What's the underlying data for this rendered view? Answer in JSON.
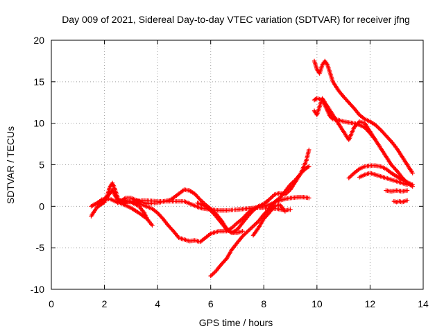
{
  "chart_data": {
    "type": "scatter",
    "title": "Day 009 of 2021, Sidereal Day-to-day VTEC variation (SDTVAR) for receiver jfng",
    "xlabel": "GPS time / hours",
    "ylabel": "SDTVAR / TECUs",
    "xlim": [
      0,
      14
    ],
    "ylim": [
      -10,
      20
    ],
    "xticks": [
      0,
      2,
      4,
      6,
      8,
      10,
      12,
      14
    ],
    "yticks": [
      -10,
      -5,
      0,
      5,
      10,
      15,
      20
    ],
    "xtick_labels": [
      "0",
      "2",
      "4",
      "6",
      "8",
      "10",
      "12",
      "14"
    ],
    "ytick_labels": [
      "-10",
      "-5",
      "0",
      "5",
      "10",
      "15",
      "20"
    ],
    "grid": true,
    "marker": "plus",
    "marker_color": "#ff0000",
    "series": [
      {
        "x": [
          1.5,
          1.7,
          1.9,
          2.0,
          2.1,
          2.2,
          2.3,
          2.4,
          2.5,
          2.6,
          2.8,
          3.0,
          3.3,
          3.6,
          3.8
        ],
        "y": [
          -1.2,
          -0.2,
          0.3,
          0.5,
          1.2,
          2.3,
          2.8,
          2.0,
          1.0,
          0.4,
          0.1,
          -0.2,
          -0.8,
          -1.5,
          -2.3
        ]
      },
      {
        "x": [
          1.5,
          1.7,
          1.9,
          2.0,
          2.1,
          2.2,
          2.3,
          2.4,
          2.5,
          2.7,
          3.0,
          3.3,
          3.5,
          3.6
        ],
        "y": [
          0.0,
          0.3,
          0.8,
          0.9,
          1.2,
          1.5,
          2.0,
          1.3,
          0.8,
          0.6,
          0.5,
          0.0,
          -0.8,
          -1.5
        ]
      },
      {
        "x": [
          1.6,
          1.8,
          2.0,
          2.2,
          2.4,
          2.6,
          3.0,
          3.5,
          4.0,
          4.5,
          5.0,
          5.3,
          5.6,
          6.0,
          6.3,
          6.6,
          7.0,
          7.3,
          7.6,
          8.0,
          8.5,
          8.8,
          9.0
        ],
        "y": [
          0.2,
          0.5,
          0.8,
          0.9,
          0.6,
          0.4,
          0.6,
          0.7,
          0.6,
          0.6,
          0.6,
          0.2,
          -0.2,
          -0.4,
          -0.5,
          -0.5,
          -0.4,
          -0.3,
          -0.2,
          -0.2,
          -0.3,
          -0.5,
          -0.4
        ]
      },
      {
        "x": [
          2.5,
          2.8,
          3.0,
          3.3,
          3.6,
          4.0,
          4.5,
          4.8,
          5.0,
          5.2,
          5.4,
          5.6,
          5.8,
          6.0,
          6.2,
          6.4,
          6.6,
          6.8,
          7.0,
          7.2
        ],
        "y": [
          0.4,
          1.0,
          1.0,
          0.6,
          0.3,
          0.4,
          0.8,
          1.5,
          2.0,
          1.9,
          1.5,
          0.8,
          0.2,
          -0.3,
          -0.9,
          -1.7,
          -2.7,
          -3.2,
          -3.2,
          -3.0
        ]
      },
      {
        "x": [
          2.6,
          3.0,
          3.4,
          3.8,
          4.0,
          4.2,
          4.4,
          4.6,
          4.8,
          5.0,
          5.2,
          5.4,
          5.6,
          5.8,
          6.0,
          6.3,
          6.6,
          6.8,
          7.0,
          7.2,
          7.4,
          7.6,
          7.8,
          8.0,
          8.3,
          8.5,
          8.7,
          9.0,
          9.3,
          9.5,
          9.7
        ],
        "y": [
          0.5,
          0.6,
          0.2,
          -0.3,
          -0.8,
          -1.5,
          -2.3,
          -3.0,
          -3.8,
          -4.0,
          -4.2,
          -4.1,
          -4.3,
          -3.8,
          -3.3,
          -3.0,
          -3.0,
          -2.6,
          -2.0,
          -1.5,
          -0.8,
          -0.3,
          0.0,
          0.0,
          0.3,
          0.6,
          0.8,
          1.0,
          1.1,
          1.1,
          1.0
        ]
      },
      {
        "x": [
          5.5,
          5.8,
          6.0,
          6.2,
          6.4,
          6.6,
          6.8,
          7.0,
          7.2,
          7.4,
          7.6,
          7.8,
          8.0,
          8.2,
          8.4,
          8.6,
          8.8,
          9.0,
          9.2,
          9.4,
          9.6,
          9.7
        ],
        "y": [
          0.4,
          0.0,
          -0.5,
          -1.2,
          -2.0,
          -2.8,
          -3.2,
          -2.8,
          -2.0,
          -1.2,
          -0.5,
          0.0,
          0.3,
          0.8,
          1.4,
          1.6,
          1.4,
          2.0,
          3.0,
          4.0,
          5.5,
          6.8
        ]
      },
      {
        "x": [
          6.0,
          6.2,
          6.4,
          6.6,
          6.8,
          7.0,
          7.2,
          7.4,
          7.6,
          7.8,
          8.0,
          8.2,
          8.4,
          8.6,
          8.8,
          9.0,
          9.2,
          9.4,
          9.6,
          9.7
        ],
        "y": [
          -8.4,
          -7.8,
          -7.0,
          -6.3,
          -5.2,
          -4.4,
          -3.6,
          -3.0,
          -2.4,
          -1.8,
          -1.0,
          -0.3,
          0.5,
          1.0,
          1.8,
          2.6,
          3.2,
          4.0,
          4.6,
          4.8
        ]
      },
      {
        "x": [
          7.6,
          7.8,
          8.0,
          8.2,
          8.4,
          8.6,
          8.8
        ],
        "y": [
          -3.5,
          -2.6,
          -1.5,
          -0.8,
          0.0,
          0.2,
          -0.6
        ]
      },
      {
        "x": [
          9.9,
          10.0,
          10.1,
          10.2,
          10.3,
          10.4,
          10.5,
          10.6,
          10.8,
          11.0,
          11.2,
          11.4,
          11.6,
          11.8,
          12.0,
          12.2,
          12.4,
          12.6,
          12.8,
          13.0,
          13.2,
          13.4,
          13.6
        ],
        "y": [
          17.5,
          16.5,
          16.0,
          17.0,
          17.5,
          17.0,
          16.0,
          15.0,
          14.0,
          13.2,
          12.5,
          11.8,
          11.0,
          10.5,
          10.2,
          9.8,
          9.2,
          8.5,
          7.8,
          7.0,
          6.0,
          5.0,
          4.0
        ]
      },
      {
        "x": [
          9.9,
          10.0,
          10.2,
          10.4,
          10.5,
          10.6,
          10.8,
          11.0,
          11.2,
          11.4,
          11.6,
          11.8,
          12.0,
          12.2,
          12.4,
          12.6,
          12.8,
          13.0,
          13.2,
          13.4,
          13.6
        ],
        "y": [
          12.8,
          13.0,
          12.8,
          11.5,
          10.8,
          10.5,
          10.4,
          10.2,
          10.1,
          10.0,
          9.8,
          9.5,
          8.8,
          8.0,
          7.0,
          6.0,
          5.0,
          4.3,
          3.5,
          2.8,
          2.4
        ]
      },
      {
        "x": [
          9.9,
          10.0,
          10.2,
          10.4,
          10.6,
          10.8,
          11.0,
          11.2,
          11.4,
          11.6,
          11.8,
          12.0,
          12.2
        ],
        "y": [
          11.5,
          11.0,
          13.0,
          12.0,
          11.0,
          10.0,
          9.0,
          8.0,
          9.5,
          10.2,
          10.0,
          9.0,
          8.0
        ]
      },
      {
        "x": [
          11.2,
          11.4,
          11.6,
          11.8,
          12.0,
          12.2,
          12.4,
          12.6,
          12.8,
          13.0,
          13.2,
          13.4,
          13.6
        ],
        "y": [
          3.4,
          4.0,
          4.5,
          4.8,
          4.9,
          4.9,
          4.8,
          4.5,
          4.0,
          3.6,
          3.2,
          2.9,
          2.6
        ]
      },
      {
        "x": [
          11.6,
          11.8,
          12.0,
          12.2,
          12.4,
          12.6,
          12.8,
          13.0,
          13.2,
          13.4
        ],
        "y": [
          3.5,
          3.8,
          4.0,
          3.8,
          3.6,
          3.4,
          3.2,
          3.0,
          2.8,
          2.6
        ]
      },
      {
        "x": [
          12.6,
          12.8,
          13.0,
          13.2,
          13.4
        ],
        "y": [
          1.9,
          1.8,
          1.9,
          1.8,
          1.9
        ]
      },
      {
        "x": [
          12.9,
          13.0,
          13.1,
          13.2,
          13.3,
          13.4
        ],
        "y": [
          0.6,
          0.5,
          0.6,
          0.5,
          0.6,
          0.7
        ]
      }
    ]
  }
}
